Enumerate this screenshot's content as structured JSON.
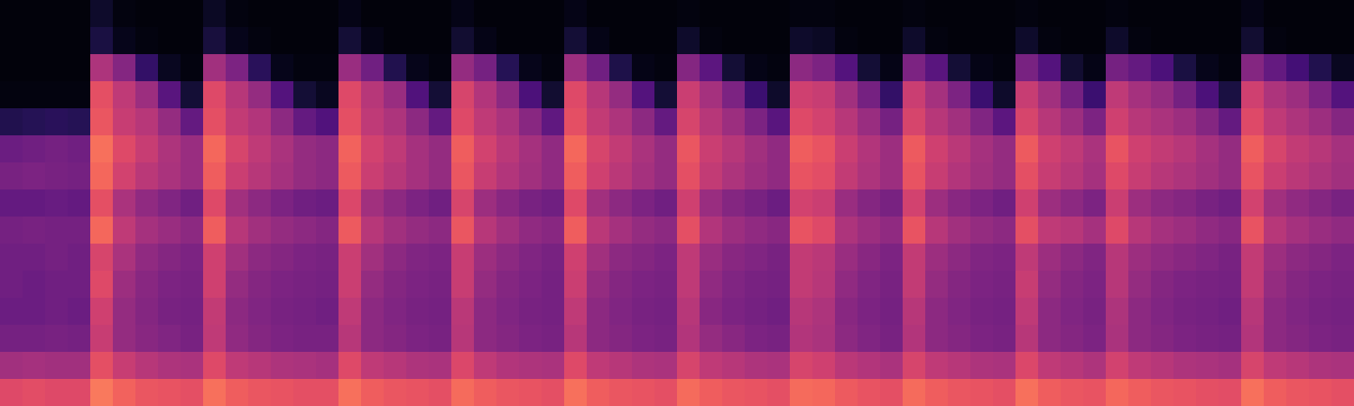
{
  "chart_data": {
    "type": "heatmap",
    "tick_labels": false,
    "zlim": [
      0,
      1
    ],
    "cells": [
      [
        0.02,
        0.02,
        0.02,
        0.02,
        0.08,
        0.03,
        0.02,
        0.02,
        0.02,
        0.07,
        0.03,
        0.02,
        0.02,
        0.02,
        0.02,
        0.04,
        0.02,
        0.02,
        0.02,
        0.02,
        0.04,
        0.02,
        0.02,
        0.02,
        0.02,
        0.04,
        0.02,
        0.02,
        0.02,
        0.02,
        0.03,
        0.02,
        0.02,
        0.02,
        0.02,
        0.03,
        0.03,
        0.02,
        0.02,
        0.02,
        0.03,
        0.02,
        0.02,
        0.02,
        0.02,
        0.03,
        0.02,
        0.02,
        0.02,
        0.03,
        0.02,
        0.02,
        0.02,
        0.02,
        0.02,
        0.04,
        0.02,
        0.02,
        0.02,
        0.02
      ],
      [
        0.02,
        0.02,
        0.02,
        0.02,
        0.12,
        0.05,
        0.03,
        0.02,
        0.02,
        0.11,
        0.05,
        0.03,
        0.02,
        0.02,
        0.02,
        0.1,
        0.04,
        0.02,
        0.02,
        0.02,
        0.09,
        0.04,
        0.02,
        0.02,
        0.02,
        0.1,
        0.04,
        0.02,
        0.02,
        0.02,
        0.08,
        0.03,
        0.02,
        0.02,
        0.02,
        0.08,
        0.07,
        0.03,
        0.02,
        0.02,
        0.08,
        0.03,
        0.02,
        0.02,
        0.02,
        0.08,
        0.03,
        0.02,
        0.02,
        0.08,
        0.03,
        0.02,
        0.02,
        0.02,
        0.02,
        0.09,
        0.03,
        0.02,
        0.02,
        0.02
      ],
      [
        0.02,
        0.02,
        0.02,
        0.02,
        0.48,
        0.38,
        0.18,
        0.06,
        0.03,
        0.45,
        0.36,
        0.16,
        0.05,
        0.03,
        0.03,
        0.43,
        0.33,
        0.14,
        0.05,
        0.03,
        0.42,
        0.34,
        0.15,
        0.05,
        0.03,
        0.44,
        0.33,
        0.13,
        0.04,
        0.03,
        0.38,
        0.28,
        0.1,
        0.04,
        0.03,
        0.4,
        0.36,
        0.26,
        0.1,
        0.04,
        0.36,
        0.27,
        0.1,
        0.04,
        0.03,
        0.35,
        0.26,
        0.09,
        0.04,
        0.34,
        0.3,
        0.24,
        0.12,
        0.05,
        0.03,
        0.38,
        0.3,
        0.22,
        0.14,
        0.06
      ],
      [
        0.03,
        0.03,
        0.03,
        0.03,
        0.62,
        0.52,
        0.44,
        0.27,
        0.1,
        0.6,
        0.5,
        0.42,
        0.26,
        0.1,
        0.06,
        0.6,
        0.5,
        0.43,
        0.25,
        0.1,
        0.58,
        0.49,
        0.4,
        0.24,
        0.09,
        0.6,
        0.5,
        0.42,
        0.26,
        0.1,
        0.55,
        0.46,
        0.36,
        0.2,
        0.08,
        0.56,
        0.54,
        0.45,
        0.34,
        0.18,
        0.55,
        0.46,
        0.36,
        0.2,
        0.08,
        0.54,
        0.45,
        0.34,
        0.2,
        0.52,
        0.46,
        0.42,
        0.34,
        0.24,
        0.12,
        0.56,
        0.48,
        0.44,
        0.36,
        0.26
      ],
      [
        0.14,
        0.15,
        0.16,
        0.15,
        0.64,
        0.54,
        0.5,
        0.42,
        0.3,
        0.62,
        0.53,
        0.49,
        0.4,
        0.3,
        0.25,
        0.62,
        0.52,
        0.48,
        0.4,
        0.3,
        0.6,
        0.52,
        0.47,
        0.39,
        0.29,
        0.62,
        0.53,
        0.48,
        0.4,
        0.3,
        0.58,
        0.5,
        0.44,
        0.36,
        0.27,
        0.6,
        0.57,
        0.5,
        0.43,
        0.34,
        0.58,
        0.5,
        0.45,
        0.37,
        0.28,
        0.58,
        0.5,
        0.44,
        0.36,
        0.56,
        0.5,
        0.47,
        0.44,
        0.38,
        0.3,
        0.6,
        0.52,
        0.48,
        0.44,
        0.38
      ],
      [
        0.32,
        0.33,
        0.34,
        0.33,
        0.7,
        0.6,
        0.54,
        0.48,
        0.43,
        0.68,
        0.58,
        0.52,
        0.47,
        0.42,
        0.4,
        0.67,
        0.57,
        0.52,
        0.46,
        0.42,
        0.66,
        0.57,
        0.51,
        0.46,
        0.41,
        0.68,
        0.58,
        0.53,
        0.47,
        0.42,
        0.64,
        0.55,
        0.5,
        0.45,
        0.41,
        0.66,
        0.63,
        0.55,
        0.49,
        0.44,
        0.65,
        0.56,
        0.51,
        0.46,
        0.42,
        0.65,
        0.56,
        0.52,
        0.47,
        0.63,
        0.56,
        0.53,
        0.5,
        0.46,
        0.42,
        0.66,
        0.58,
        0.53,
        0.5,
        0.46
      ],
      [
        0.35,
        0.36,
        0.35,
        0.34,
        0.68,
        0.57,
        0.51,
        0.47,
        0.43,
        0.66,
        0.55,
        0.5,
        0.46,
        0.42,
        0.4,
        0.65,
        0.55,
        0.5,
        0.46,
        0.42,
        0.64,
        0.54,
        0.49,
        0.45,
        0.41,
        0.66,
        0.56,
        0.51,
        0.46,
        0.42,
        0.62,
        0.53,
        0.48,
        0.44,
        0.41,
        0.63,
        0.61,
        0.53,
        0.48,
        0.44,
        0.63,
        0.54,
        0.49,
        0.45,
        0.42,
        0.62,
        0.54,
        0.5,
        0.46,
        0.6,
        0.54,
        0.5,
        0.48,
        0.45,
        0.42,
        0.63,
        0.55,
        0.51,
        0.48,
        0.45
      ],
      [
        0.3,
        0.3,
        0.31,
        0.3,
        0.62,
        0.47,
        0.41,
        0.37,
        0.33,
        0.6,
        0.45,
        0.4,
        0.36,
        0.33,
        0.32,
        0.59,
        0.45,
        0.4,
        0.36,
        0.33,
        0.58,
        0.44,
        0.39,
        0.35,
        0.33,
        0.6,
        0.45,
        0.4,
        0.36,
        0.33,
        0.56,
        0.43,
        0.38,
        0.35,
        0.32,
        0.57,
        0.55,
        0.43,
        0.38,
        0.35,
        0.57,
        0.44,
        0.39,
        0.36,
        0.33,
        0.56,
        0.44,
        0.4,
        0.36,
        0.55,
        0.44,
        0.4,
        0.38,
        0.35,
        0.33,
        0.57,
        0.45,
        0.41,
        0.38,
        0.35
      ],
      [
        0.34,
        0.35,
        0.34,
        0.34,
        0.68,
        0.52,
        0.46,
        0.43,
        0.4,
        0.66,
        0.5,
        0.45,
        0.42,
        0.4,
        0.38,
        0.65,
        0.5,
        0.45,
        0.42,
        0.4,
        0.64,
        0.5,
        0.45,
        0.41,
        0.39,
        0.66,
        0.51,
        0.46,
        0.42,
        0.4,
        0.62,
        0.49,
        0.44,
        0.41,
        0.39,
        0.63,
        0.6,
        0.48,
        0.44,
        0.41,
        0.63,
        0.5,
        0.45,
        0.42,
        0.4,
        0.62,
        0.52,
        0.5,
        0.46,
        0.6,
        0.5,
        0.46,
        0.44,
        0.41,
        0.39,
        0.63,
        0.5,
        0.46,
        0.43,
        0.41
      ],
      [
        0.33,
        0.33,
        0.34,
        0.33,
        0.58,
        0.47,
        0.41,
        0.38,
        0.36,
        0.56,
        0.45,
        0.4,
        0.38,
        0.36,
        0.35,
        0.55,
        0.45,
        0.4,
        0.37,
        0.36,
        0.54,
        0.44,
        0.4,
        0.37,
        0.35,
        0.56,
        0.45,
        0.4,
        0.38,
        0.36,
        0.52,
        0.43,
        0.39,
        0.37,
        0.35,
        0.53,
        0.51,
        0.43,
        0.39,
        0.36,
        0.53,
        0.44,
        0.4,
        0.37,
        0.36,
        0.52,
        0.44,
        0.4,
        0.37,
        0.5,
        0.44,
        0.41,
        0.39,
        0.37,
        0.35,
        0.53,
        0.44,
        0.4,
        0.38,
        0.36
      ],
      [
        0.33,
        0.32,
        0.33,
        0.33,
        0.6,
        0.44,
        0.39,
        0.36,
        0.35,
        0.56,
        0.42,
        0.38,
        0.36,
        0.35,
        0.34,
        0.55,
        0.42,
        0.38,
        0.36,
        0.35,
        0.54,
        0.42,
        0.38,
        0.36,
        0.34,
        0.55,
        0.42,
        0.38,
        0.36,
        0.35,
        0.52,
        0.41,
        0.37,
        0.35,
        0.34,
        0.53,
        0.5,
        0.41,
        0.37,
        0.35,
        0.53,
        0.42,
        0.38,
        0.36,
        0.35,
        0.54,
        0.42,
        0.38,
        0.36,
        0.5,
        0.42,
        0.38,
        0.36,
        0.35,
        0.34,
        0.53,
        0.42,
        0.38,
        0.36,
        0.35
      ],
      [
        0.32,
        0.32,
        0.33,
        0.32,
        0.56,
        0.42,
        0.38,
        0.35,
        0.34,
        0.53,
        0.4,
        0.37,
        0.35,
        0.34,
        0.33,
        0.52,
        0.4,
        0.37,
        0.35,
        0.34,
        0.51,
        0.4,
        0.37,
        0.35,
        0.34,
        0.52,
        0.4,
        0.37,
        0.35,
        0.34,
        0.5,
        0.39,
        0.36,
        0.34,
        0.33,
        0.5,
        0.48,
        0.39,
        0.36,
        0.34,
        0.5,
        0.4,
        0.37,
        0.35,
        0.34,
        0.52,
        0.4,
        0.37,
        0.35,
        0.48,
        0.4,
        0.37,
        0.35,
        0.34,
        0.33,
        0.5,
        0.4,
        0.37,
        0.35,
        0.34
      ],
      [
        0.34,
        0.34,
        0.35,
        0.34,
        0.54,
        0.42,
        0.39,
        0.37,
        0.35,
        0.52,
        0.41,
        0.38,
        0.36,
        0.35,
        0.35,
        0.5,
        0.4,
        0.38,
        0.36,
        0.35,
        0.5,
        0.4,
        0.38,
        0.36,
        0.35,
        0.5,
        0.4,
        0.38,
        0.36,
        0.35,
        0.49,
        0.42,
        0.39,
        0.36,
        0.35,
        0.49,
        0.47,
        0.4,
        0.37,
        0.35,
        0.49,
        0.4,
        0.38,
        0.36,
        0.35,
        0.5,
        0.4,
        0.38,
        0.36,
        0.47,
        0.4,
        0.38,
        0.36,
        0.35,
        0.34,
        0.49,
        0.4,
        0.38,
        0.36,
        0.35
      ],
      [
        0.45,
        0.46,
        0.45,
        0.45,
        0.62,
        0.54,
        0.5,
        0.48,
        0.47,
        0.6,
        0.52,
        0.5,
        0.48,
        0.47,
        0.46,
        0.6,
        0.52,
        0.5,
        0.48,
        0.47,
        0.59,
        0.52,
        0.49,
        0.48,
        0.47,
        0.6,
        0.52,
        0.5,
        0.48,
        0.47,
        0.58,
        0.52,
        0.5,
        0.48,
        0.47,
        0.58,
        0.56,
        0.51,
        0.49,
        0.47,
        0.58,
        0.52,
        0.5,
        0.48,
        0.47,
        0.59,
        0.52,
        0.5,
        0.48,
        0.57,
        0.52,
        0.5,
        0.48,
        0.47,
        0.46,
        0.58,
        0.52,
        0.5,
        0.48,
        0.47
      ],
      [
        0.6,
        0.61,
        0.6,
        0.6,
        0.72,
        0.67,
        0.64,
        0.63,
        0.62,
        0.7,
        0.66,
        0.64,
        0.63,
        0.62,
        0.62,
        0.7,
        0.66,
        0.64,
        0.63,
        0.62,
        0.69,
        0.66,
        0.64,
        0.63,
        0.62,
        0.7,
        0.66,
        0.64,
        0.63,
        0.62,
        0.69,
        0.66,
        0.64,
        0.63,
        0.62,
        0.69,
        0.68,
        0.65,
        0.63,
        0.62,
        0.69,
        0.66,
        0.64,
        0.63,
        0.62,
        0.7,
        0.66,
        0.64,
        0.63,
        0.68,
        0.66,
        0.64,
        0.63,
        0.62,
        0.61,
        0.7,
        0.66,
        0.64,
        0.63,
        0.62
      ]
    ]
  }
}
